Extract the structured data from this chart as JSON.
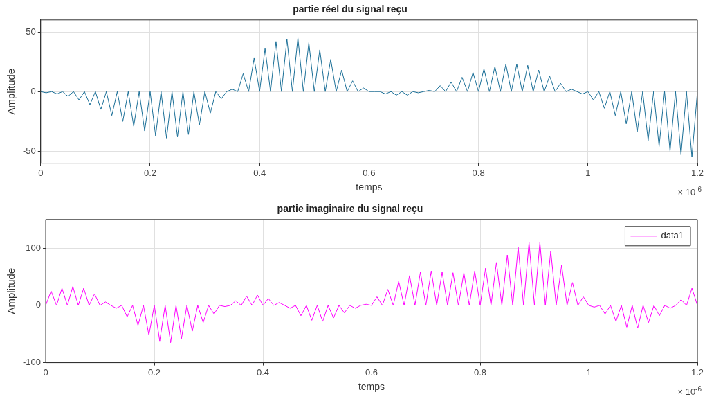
{
  "chart_data": [
    {
      "type": "line",
      "title": "partie réel du signal reçu",
      "xlabel": "temps",
      "ylabel": "Amplitude",
      "x": [
        0,
        0.01,
        0.02,
        0.03,
        0.04,
        0.05,
        0.06,
        0.07,
        0.08,
        0.09,
        0.1,
        0.11,
        0.12,
        0.13,
        0.14,
        0.15,
        0.16,
        0.17,
        0.18,
        0.19,
        0.2,
        0.21,
        0.22,
        0.23,
        0.24,
        0.25,
        0.26,
        0.27,
        0.28,
        0.29,
        0.3,
        0.31,
        0.32,
        0.33,
        0.34,
        0.35,
        0.36,
        0.37,
        0.38,
        0.39,
        0.4,
        0.41,
        0.42,
        0.43,
        0.44,
        0.45,
        0.46,
        0.47,
        0.48,
        0.49,
        0.5,
        0.51,
        0.52,
        0.53,
        0.54,
        0.55,
        0.56,
        0.57,
        0.58,
        0.59,
        0.6,
        0.61,
        0.62,
        0.63,
        0.64,
        0.65,
        0.66,
        0.67,
        0.68,
        0.69,
        0.7,
        0.71,
        0.72,
        0.73,
        0.74,
        0.75,
        0.76,
        0.77,
        0.78,
        0.79,
        0.8,
        0.81,
        0.82,
        0.83,
        0.84,
        0.85,
        0.86,
        0.87,
        0.88,
        0.89,
        0.9,
        0.91,
        0.92,
        0.93,
        0.94,
        0.95,
        0.96,
        0.97,
        0.98,
        0.99,
        1,
        1.01,
        1.02,
        1.03,
        1.04,
        1.05,
        1.06,
        1.07,
        1.08,
        1.09,
        1.1,
        1.11,
        1.12,
        1.13,
        1.14,
        1.15,
        1.16,
        1.17,
        1.18,
        1.19,
        1.2
      ],
      "series": [
        {
          "color": "#1b6f97",
          "values": [
            0,
            -1,
            0,
            -2,
            0,
            -4,
            0,
            -7,
            0,
            -11,
            0,
            -15,
            0,
            -20,
            0,
            -25,
            0,
            -29,
            0,
            -33,
            0,
            -37,
            0,
            -39,
            0,
            -38,
            0,
            -36,
            0,
            -28,
            0,
            -18,
            0,
            -6,
            0,
            2,
            0,
            15,
            0,
            28,
            0,
            36,
            0,
            42,
            0,
            44,
            0,
            45,
            0,
            41,
            0,
            35,
            0,
            27,
            0,
            18,
            0,
            9,
            0,
            3,
            0,
            0,
            0,
            -2,
            0,
            -3,
            0,
            -3,
            0,
            -1,
            0,
            1,
            0,
            5,
            0,
            8,
            0,
            12,
            0,
            16,
            0,
            19,
            0,
            21,
            0,
            23,
            0,
            23,
            0,
            22,
            0,
            18,
            0,
            13,
            0,
            7,
            0,
            2,
            0,
            -2,
            0,
            -7,
            0,
            -14,
            0,
            -20,
            0,
            -27,
            0,
            -34,
            0,
            -41,
            0,
            -46,
            0,
            -50,
            0,
            -53,
            0,
            -55,
            0
          ]
        }
      ],
      "xlim": [
        0,
        1.2
      ],
      "xticks": [
        0,
        0.2,
        0.4,
        0.6,
        0.8,
        1,
        1.2
      ],
      "ylim": [
        -60,
        60
      ],
      "yticks": [
        -50,
        0,
        50
      ],
      "grid": true,
      "legend": false,
      "annotations": [
        "× 10$^{-6}$"
      ]
    },
    {
      "type": "line",
      "title": "partie imaginaire du signal reçu",
      "xlabel": "temps",
      "ylabel": "Amplitude",
      "x": [
        0,
        0.01,
        0.02,
        0.03,
        0.04,
        0.05,
        0.06,
        0.07,
        0.08,
        0.09,
        0.1,
        0.11,
        0.12,
        0.13,
        0.14,
        0.15,
        0.16,
        0.17,
        0.18,
        0.19,
        0.2,
        0.21,
        0.22,
        0.23,
        0.24,
        0.25,
        0.26,
        0.27,
        0.28,
        0.29,
        0.3,
        0.31,
        0.32,
        0.33,
        0.34,
        0.35,
        0.36,
        0.37,
        0.38,
        0.39,
        0.4,
        0.41,
        0.42,
        0.43,
        0.44,
        0.45,
        0.46,
        0.47,
        0.48,
        0.49,
        0.5,
        0.51,
        0.52,
        0.53,
        0.54,
        0.55,
        0.56,
        0.57,
        0.58,
        0.59,
        0.6,
        0.61,
        0.62,
        0.63,
        0.64,
        0.65,
        0.66,
        0.67,
        0.68,
        0.69,
        0.7,
        0.71,
        0.72,
        0.73,
        0.74,
        0.75,
        0.76,
        0.77,
        0.78,
        0.79,
        0.8,
        0.81,
        0.82,
        0.83,
        0.84,
        0.85,
        0.86,
        0.87,
        0.88,
        0.89,
        0.9,
        0.91,
        0.92,
        0.93,
        0.94,
        0.95,
        0.96,
        0.97,
        0.98,
        0.99,
        1,
        1.01,
        1.02,
        1.03,
        1.04,
        1.05,
        1.06,
        1.07,
        1.08,
        1.09,
        1.1,
        1.11,
        1.12,
        1.13,
        1.14,
        1.15,
        1.16,
        1.17,
        1.18,
        1.19,
        1.2
      ],
      "series": [
        {
          "name": "data1",
          "color": "#ff00ff",
          "values": [
            0,
            25,
            0,
            30,
            0,
            33,
            0,
            30,
            0,
            20,
            0,
            6,
            0,
            -5,
            0,
            -20,
            0,
            -35,
            0,
            -52,
            0,
            -62,
            0,
            -65,
            0,
            -58,
            0,
            -45,
            0,
            -30,
            0,
            -15,
            0,
            -2,
            0,
            8,
            0,
            16,
            0,
            18,
            0,
            12,
            0,
            5,
            0,
            -5,
            0,
            -18,
            0,
            -26,
            0,
            -28,
            0,
            -22,
            0,
            -13,
            0,
            -5,
            0,
            2,
            0,
            15,
            0,
            28,
            0,
            42,
            0,
            52,
            0,
            58,
            0,
            60,
            0,
            58,
            0,
            57,
            0,
            57,
            0,
            60,
            0,
            65,
            0,
            75,
            0,
            88,
            0,
            102,
            0,
            110,
            0,
            110,
            0,
            95,
            0,
            70,
            0,
            40,
            0,
            15,
            0,
            -3,
            0,
            -15,
            0,
            -28,
            0,
            -38,
            0,
            -40,
            0,
            -30,
            0,
            -18,
            0,
            -5,
            0,
            10,
            0,
            30,
            0
          ]
        }
      ],
      "xlim": [
        0,
        1.2
      ],
      "xticks": [
        0,
        0.2,
        0.4,
        0.6,
        0.8,
        1,
        1.2
      ],
      "ylim": [
        -100,
        150
      ],
      "yticks": [
        -100,
        0,
        100
      ],
      "grid": true,
      "legend": "top right",
      "annotations": [
        "× 10$^{-6}$"
      ]
    }
  ]
}
